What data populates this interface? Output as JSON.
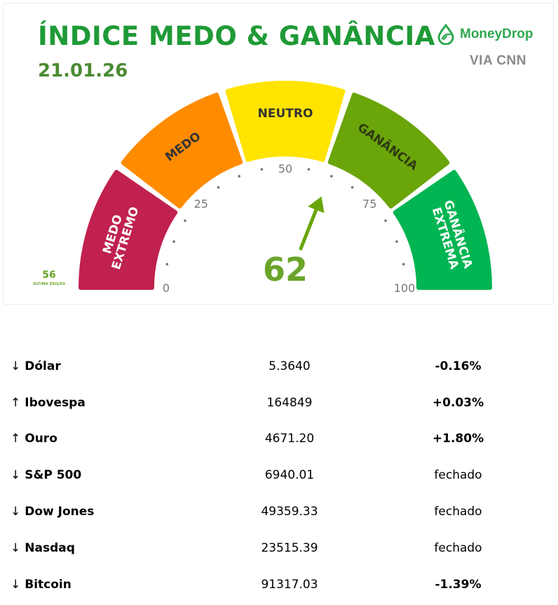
{
  "header": {
    "title": "ÍNDICE MEDO & GANÂNCIA",
    "date": "21.01.26",
    "brand": "MoneyDrop",
    "via": "VIA CNN",
    "accent_color": "#1f9a36"
  },
  "gauge": {
    "value": 62,
    "value_label": "62",
    "scale_min": 0,
    "scale_max": 100,
    "ticks": [
      {
        "value": 0,
        "label": "0"
      },
      {
        "value": 25,
        "label": "25"
      },
      {
        "value": 50,
        "label": "50"
      },
      {
        "value": 75,
        "label": "75"
      },
      {
        "value": 100,
        "label": "100"
      }
    ],
    "segments": [
      {
        "label": "MEDO EXTREMO",
        "lines": [
          "MEDO",
          "EXTREMO"
        ],
        "color": "#c0214e",
        "text_color": "#ffffff"
      },
      {
        "label": "MEDO",
        "lines": [
          "MEDO"
        ],
        "color": "#ff8c00",
        "text_color": "#333333"
      },
      {
        "label": "NEUTRO",
        "lines": [
          "NEUTRO"
        ],
        "color": "#ffe400",
        "text_color": "#333333"
      },
      {
        "label": "GANÂNCIA",
        "lines": [
          "GANÂNCIA"
        ],
        "color": "#6aa50a",
        "text_color": "#2f3a10"
      },
      {
        "label": "GANÂNCIA EXTREMA",
        "lines": [
          "GANÂNCIA",
          "EXTREMA"
        ],
        "color": "#00b552",
        "text_color": "#ffffff"
      }
    ],
    "last_edition_value": "56",
    "last_edition_label": "ÚLTIMA EDIÇÃO"
  },
  "markets": [
    {
      "arrow": "↓",
      "name": "Dólar",
      "value": "5.3640",
      "change": "-0.16%",
      "status": "pos"
    },
    {
      "arrow": "↑",
      "name": "Ibovespa",
      "value": "164849",
      "change": "+0.03%",
      "status": "pos"
    },
    {
      "arrow": "↑",
      "name": "Ouro",
      "value": "4671.20",
      "change": "+1.80%",
      "status": "pos"
    },
    {
      "arrow": "↓",
      "name": "S&P 500",
      "value": "6940.01",
      "change": "fechado",
      "status": "closed"
    },
    {
      "arrow": "↓",
      "name": "Dow Jones",
      "value": "49359.33",
      "change": "fechado",
      "status": "closed"
    },
    {
      "arrow": "↓",
      "name": "Nasdaq",
      "value": "23515.39",
      "change": "fechado",
      "status": "closed"
    },
    {
      "arrow": "↓",
      "name": "Bitcoin",
      "value": "91317.03",
      "change": "-1.39%",
      "status": "neg"
    }
  ]
}
